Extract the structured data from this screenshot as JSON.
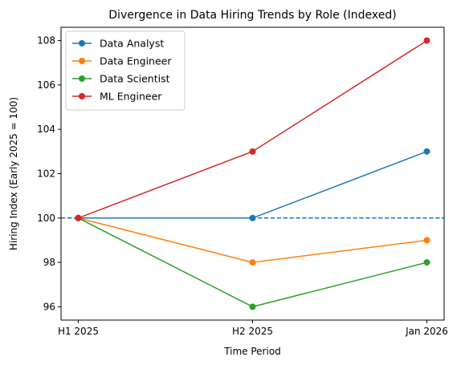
{
  "chart_data": {
    "type": "line",
    "title": "Divergence in Data Hiring Trends by Role (Indexed)",
    "xlabel": "Time Period",
    "ylabel": "Hiring Index (Early 2025 = 100)",
    "categories": [
      "H1 2025",
      "H2 2025",
      "Jan 2026"
    ],
    "ylim": [
      95.4,
      108.6
    ],
    "yticks": [
      96,
      98,
      100,
      102,
      104,
      106,
      108
    ],
    "grid": false,
    "legend_position": "top-left",
    "reference_line": {
      "y": 100,
      "style": "dashed",
      "color": "#1f77b4"
    },
    "series": [
      {
        "name": "Data Analyst",
        "color": "#1f77b4",
        "values": [
          100,
          100,
          103
        ]
      },
      {
        "name": "Data Engineer",
        "color": "#ff7f0e",
        "values": [
          100,
          98,
          99
        ]
      },
      {
        "name": "Data Scientist",
        "color": "#2ca02c",
        "values": [
          100,
          96,
          98
        ]
      },
      {
        "name": "ML Engineer",
        "color": "#d62728",
        "values": [
          100,
          103,
          108
        ]
      }
    ]
  }
}
